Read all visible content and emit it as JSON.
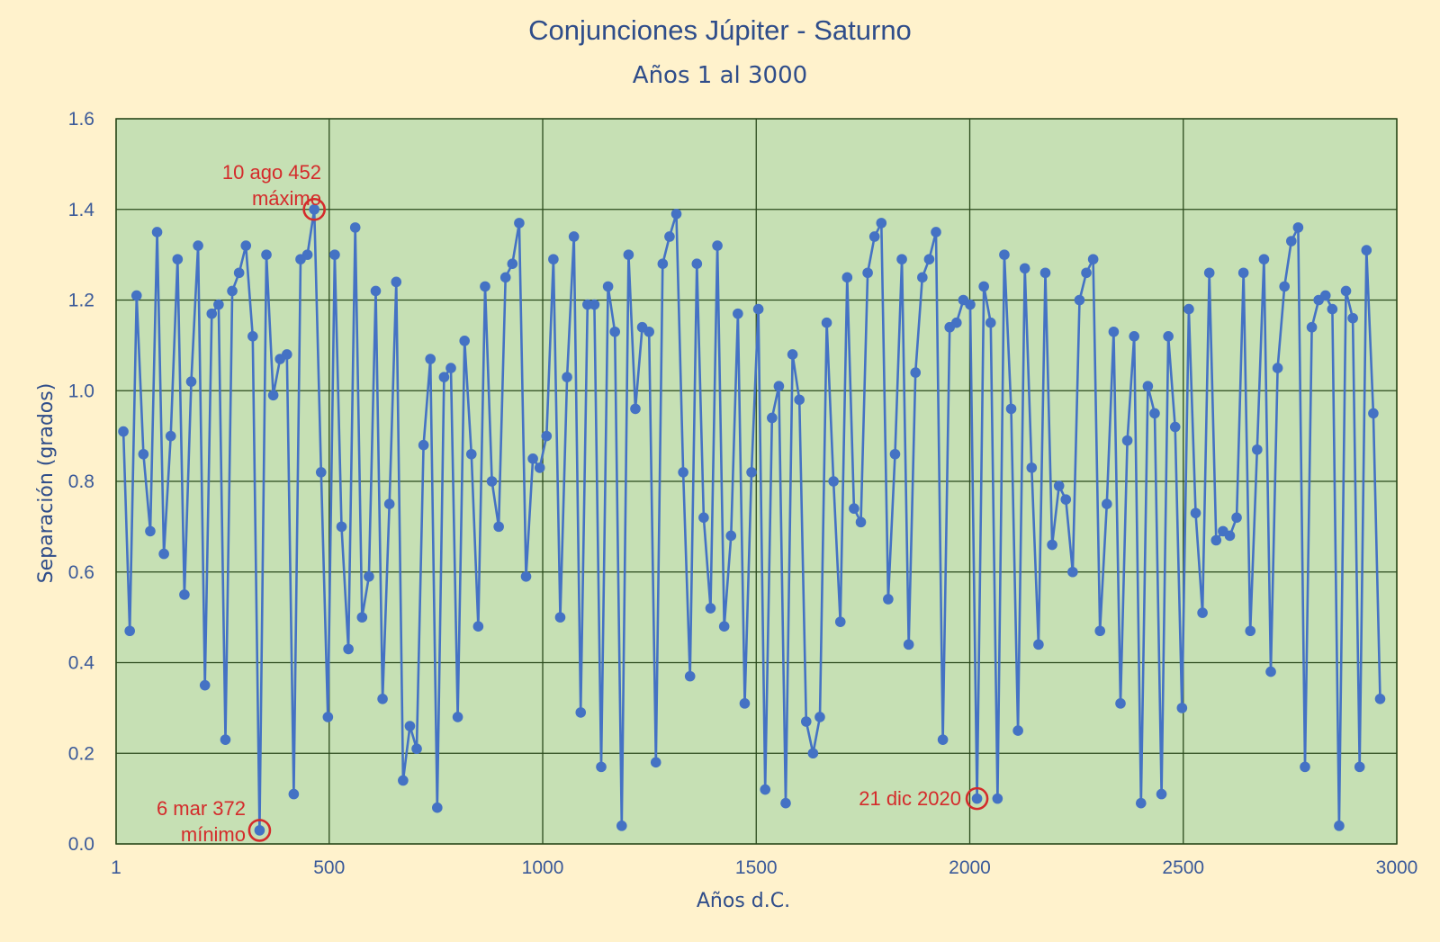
{
  "chart_data": {
    "type": "scatter",
    "title": "Conjunciones Júpiter - Saturno",
    "subtitle": "Años 1 al 3000",
    "xlabel": "Años d.C.",
    "ylabel": "Separación (grados)",
    "xlim": [
      1,
      3000
    ],
    "ylim": [
      0,
      1.6
    ],
    "x_ticks": [
      {
        "value": 1,
        "label": "1"
      },
      {
        "value": 500,
        "label": "500"
      },
      {
        "value": 1000,
        "label": "1000"
      },
      {
        "value": 1500,
        "label": "1500"
      },
      {
        "value": 2000,
        "label": "2000"
      },
      {
        "value": 2500,
        "label": "2500"
      },
      {
        "value": 3000,
        "label": "3000"
      }
    ],
    "y_ticks": [
      {
        "value": 0,
        "label": "0.0"
      },
      {
        "value": 0.2,
        "label": "0.2"
      },
      {
        "value": 0.4,
        "label": "0.4"
      },
      {
        "value": 0.6,
        "label": "0.6"
      },
      {
        "value": 0.8,
        "label": "0.8"
      },
      {
        "value": 1.0,
        "label": "1.0"
      },
      {
        "value": 1.2,
        "label": "1.2"
      },
      {
        "value": 1.4,
        "label": "1.4"
      },
      {
        "value": 1.6,
        "label": "1.6"
      }
    ],
    "grid": true,
    "colors": {
      "background": "#fff2cc",
      "plot_area": "#c6e0b4",
      "grid": "#2b4a1c",
      "series": "#4472c4",
      "annotation": "#d42b2b",
      "text": "#2f4d8a"
    },
    "series": [
      {
        "x": [
          18,
          33,
          49,
          65,
          81,
          97,
          113,
          129,
          145,
          161,
          177,
          193,
          209,
          225,
          241,
          257,
          273,
          289,
          305,
          321,
          337,
          353,
          369,
          385,
          401,
          417,
          433,
          449,
          465,
          481,
          497,
          513,
          529,
          545,
          561,
          577,
          593,
          609,
          625,
          641,
          657,
          673,
          689,
          705,
          721,
          737,
          753,
          769,
          785,
          801,
          817,
          833,
          849,
          865,
          881,
          897,
          913,
          929,
          945,
          961,
          977,
          993,
          1009,
          1025,
          1041,
          1057,
          1073,
          1089,
          1105,
          1121,
          1137,
          1153,
          1169,
          1185,
          1201,
          1217,
          1233,
          1249,
          1265,
          1281,
          1297,
          1313,
          1329,
          1345,
          1361,
          1377,
          1393,
          1409,
          1425,
          1441,
          1457,
          1473,
          1489,
          1505,
          1521,
          1537,
          1553,
          1569,
          1585,
          1601,
          1617,
          1633,
          1649,
          1665,
          1681,
          1697,
          1713,
          1729,
          1745,
          1761,
          1777,
          1793,
          1809,
          1825,
          1841,
          1857,
          1873,
          1889,
          1905,
          1921,
          1937,
          1953,
          1969,
          1985,
          2001,
          2017,
          2033,
          2049,
          2065,
          2081,
          2097,
          2113,
          2129,
          2145,
          2161,
          2177,
          2193,
          2209,
          2225,
          2241,
          2257,
          2273,
          2289,
          2305,
          2321,
          2337,
          2353,
          2369,
          2385,
          2401,
          2417,
          2433,
          2449,
          2465,
          2481,
          2497,
          2513,
          2529,
          2545,
          2561,
          2577,
          2593,
          2609,
          2625,
          2641,
          2657,
          2673,
          2689,
          2705,
          2721,
          2737,
          2753,
          2769,
          2785,
          2801,
          2817,
          2833,
          2849,
          2865,
          2881,
          2897,
          2913,
          2929,
          2945,
          2961
        ],
        "y": [
          0.91,
          0.47,
          1.21,
          0.86,
          0.69,
          1.35,
          0.64,
          0.9,
          1.29,
          0.55,
          1.02,
          1.32,
          0.35,
          1.17,
          1.19,
          0.23,
          1.22,
          1.26,
          1.32,
          1.12,
          0.03,
          1.3,
          0.99,
          1.07,
          1.08,
          0.11,
          1.29,
          1.3,
          1.4,
          0.82,
          0.28,
          1.3,
          0.7,
          0.43,
          1.36,
          0.5,
          0.59,
          1.22,
          0.32,
          0.75,
          1.24,
          0.14,
          0.26,
          0.21,
          0.88,
          1.07,
          0.08,
          1.03,
          1.05,
          0.28,
          1.11,
          0.86,
          0.48,
          1.23,
          0.8,
          0.7,
          1.25,
          1.28,
          1.37,
          0.59,
          0.85,
          0.83,
          0.9,
          1.29,
          0.5,
          1.03,
          1.34,
          0.29,
          1.19,
          1.19,
          0.17,
          1.23,
          1.13,
          0.04,
          1.3,
          0.96,
          1.14,
          1.13,
          0.18,
          1.28,
          1.34,
          1.39,
          0.82,
          0.37,
          1.28,
          0.72,
          0.52,
          1.32,
          0.48,
          0.68,
          1.17,
          0.31,
          0.82,
          1.18,
          0.12,
          0.94,
          1.01,
          0.09,
          1.08,
          0.98,
          0.27,
          0.2,
          0.28,
          1.15,
          0.8,
          0.49,
          1.25,
          0.74,
          0.71,
          1.26,
          1.34,
          1.37,
          0.54,
          0.86,
          1.29,
          0.44,
          1.04,
          1.25,
          1.29,
          1.35,
          0.23,
          1.14,
          1.15,
          1.2,
          1.19,
          0.1,
          1.23,
          1.15,
          0.1,
          1.3,
          0.96,
          0.25,
          1.27,
          0.83,
          0.44,
          1.26,
          0.66,
          0.79,
          0.76,
          0.6,
          1.2,
          1.26,
          1.29,
          0.47,
          0.75,
          1.13,
          0.31,
          0.89,
          1.12,
          0.09,
          1.01,
          0.95,
          0.11,
          1.12,
          0.92,
          0.3,
          1.18,
          0.73,
          0.51,
          1.26,
          0.67,
          0.69,
          0.68,
          0.72,
          1.26,
          0.47,
          0.87,
          1.29,
          0.38,
          1.05,
          1.23,
          1.33,
          1.36,
          0.17,
          1.14,
          1.2,
          1.21,
          1.18,
          0.04,
          1.22,
          1.16,
          0.17,
          1.31,
          0.95,
          0.32
        ]
      }
    ],
    "annotations": [
      {
        "lines": [
          "10 ago 452",
          "máximo"
        ],
        "x": 465,
        "y": 1.4
      },
      {
        "lines": [
          "6 mar 372",
          "mínimo"
        ],
        "x": 337,
        "y": 0.03
      },
      {
        "lines": [
          "21 dic 2020"
        ],
        "x": 2017,
        "y": 0.1
      }
    ]
  }
}
